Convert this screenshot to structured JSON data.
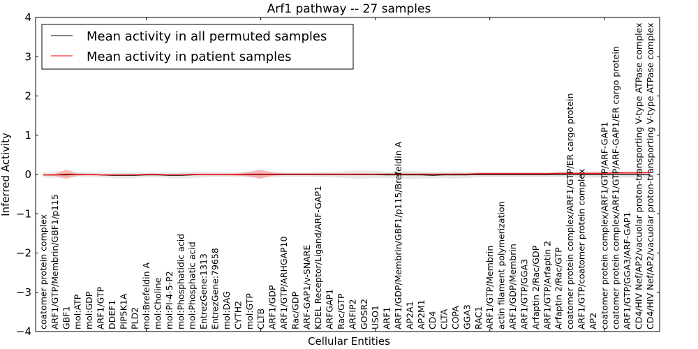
{
  "chart_data": {
    "type": "line",
    "title": "Arf1 pathway -- 27 samples",
    "xlabel": "Cellular Entities",
    "ylabel": "Inferred Activity",
    "ylim": [
      -4,
      4
    ],
    "xlim": [
      0.33,
      54.83
    ],
    "yticks": [
      -4,
      -3,
      -2,
      -1,
      0,
      1,
      2,
      3,
      4
    ],
    "ytick_labels": [
      "−4",
      "−3",
      "−2",
      "−1",
      "0",
      "1",
      "2",
      "3",
      "4"
    ],
    "xticks": [
      10,
      20,
      30,
      40,
      50
    ],
    "legend_placement": "top-left",
    "categories": [
      "coatomer protein complex",
      "ARF1/GTP/Membrin/GBF1/p115",
      "GBF1",
      "mol:ATP",
      "mol:GDP",
      "ARF1/GTP",
      "DDEF1",
      "PIP5K1A",
      "PLD2",
      "mol:Brefeldin A",
      "mol:Choline",
      "mol:PI-4-5-P2",
      "mol:Phosphatidic acid",
      "mol:Phosphatic acid",
      "EntrezGene:1313",
      "EntrezGene:79658",
      "mol:DAG",
      "CYTH2",
      "mol:GTP",
      "CLTB",
      "ARF1/GDP",
      "ARF1/GTP/ARHGAP10",
      "Rac/GDP",
      "ARF-GAP1/v-SNARE",
      "KDEL Receptor/Ligand/ARF-GAP1",
      "ARFGAP1",
      "Rac/GTP",
      "ARFIP2",
      "GOSR2",
      "USO1",
      "ARF1",
      "ARF1/GDP/Membrin/GBF1/p115/Brefeldin A",
      "AP2A1",
      "AP2M1",
      "CD4",
      "CLTA",
      "COPA",
      "GGA3",
      "RAC1",
      "ARF1/GTP/Membrin",
      "actin filament polymerization",
      "ARF1/GDP/Membrin",
      "ARF1/GTP/GGA3",
      "Arfaptin 2/Rac/GDP",
      "ARF1/GTP/Arfaptin 2",
      "Arfaptin 2/Rac/GTP",
      "coatomer protein complex/ARF1/GTP/ER cargo protein",
      "ARF1/GTP/coatomer protein complex",
      "AP2",
      "coatomer protein complex/ARF1/GTP/ARF-GAP1",
      "coatomer protein complex/ARF1/GTP/ARF-GAP1/ER cargo protein",
      "ARF1/GTP/GGA3/ARF-GAP1",
      "CD4/HIV Nef/AP2/vacuolar proton-transporting V-type ATPase complex",
      "CD4/HIV Nef/AP2/vacuolar proton-transporting V-type ATPase complex"
    ],
    "series": [
      {
        "name": "Mean activity in all permuted samples",
        "color": "#000000",
        "band_color": "#bbbbbb",
        "values": [
          -0.01,
          -0.01,
          -0.01,
          0,
          0,
          -0.01,
          -0.02,
          -0.02,
          -0.02,
          -0.01,
          -0.01,
          -0.02,
          -0.02,
          -0.01,
          0,
          0,
          0,
          0,
          0,
          0,
          0,
          0,
          0,
          0,
          0,
          0,
          0,
          0,
          0,
          0,
          -0.01,
          -0.01,
          -0.01,
          -0.01,
          -0.02,
          -0.01,
          -0.01,
          -0.01,
          0,
          0,
          0,
          0,
          0,
          0,
          0,
          0,
          0,
          0,
          0,
          0,
          0,
          0,
          0,
          0
        ],
        "band": [
          0.07,
          0.07,
          0.07,
          0.06,
          0.06,
          0.06,
          0.07,
          0.07,
          0.07,
          0.06,
          0.06,
          0.07,
          0.08,
          0.08,
          0.07,
          0.06,
          0.06,
          0.06,
          0.07,
          0.08,
          0.07,
          0.06,
          0.06,
          0.06,
          0.07,
          0.07,
          0.08,
          0.1,
          0.1,
          0.09,
          0.08,
          0.09,
          0.1,
          0.09,
          0.08,
          0.08,
          0.09,
          0.08,
          0.07,
          0.07,
          0.07,
          0.07,
          0.07,
          0.07,
          0.07,
          0.07,
          0.07,
          0.08,
          0.08,
          0.08,
          0.08,
          0.08,
          0.08,
          0.08
        ]
      },
      {
        "name": "Mean activity in patient samples",
        "color": "#ff0000",
        "band_color": "#ff8080",
        "values": [
          -0.01,
          -0.01,
          0.01,
          0,
          0,
          -0.01,
          -0.01,
          -0.01,
          -0.01,
          0,
          0,
          -0.01,
          -0.01,
          0,
          0,
          0,
          0,
          0,
          0.01,
          0.01,
          0.01,
          0.01,
          0.01,
          0.01,
          0.01,
          0.01,
          0.01,
          0.01,
          0.01,
          0.01,
          0.01,
          0.01,
          0.01,
          0.01,
          0.01,
          0.01,
          0.01,
          0.01,
          0.02,
          0.02,
          0.02,
          0.02,
          0.02,
          0.02,
          0.02,
          0.03,
          0.03,
          0.03,
          0.03,
          0.03,
          0.04,
          0.04,
          0.04,
          0.05
        ],
        "band": [
          0.02,
          0.03,
          0.12,
          0.03,
          0.02,
          0.02,
          0.02,
          0.02,
          0.02,
          0.02,
          0.02,
          0.02,
          0.02,
          0.02,
          0.02,
          0.02,
          0.02,
          0.03,
          0.06,
          0.12,
          0.04,
          0.02,
          0.02,
          0.02,
          0.02,
          0.02,
          0.02,
          0.02,
          0.02,
          0.02,
          0.02,
          0.02,
          0.02,
          0.02,
          0.02,
          0.02,
          0.02,
          0.02,
          0.02,
          0.02,
          0.02,
          0.02,
          0.02,
          0.02,
          0.02,
          0.02,
          0.02,
          0.02,
          0.02,
          0.02,
          0.02,
          0.02,
          0.02,
          0.02
        ]
      }
    ]
  }
}
